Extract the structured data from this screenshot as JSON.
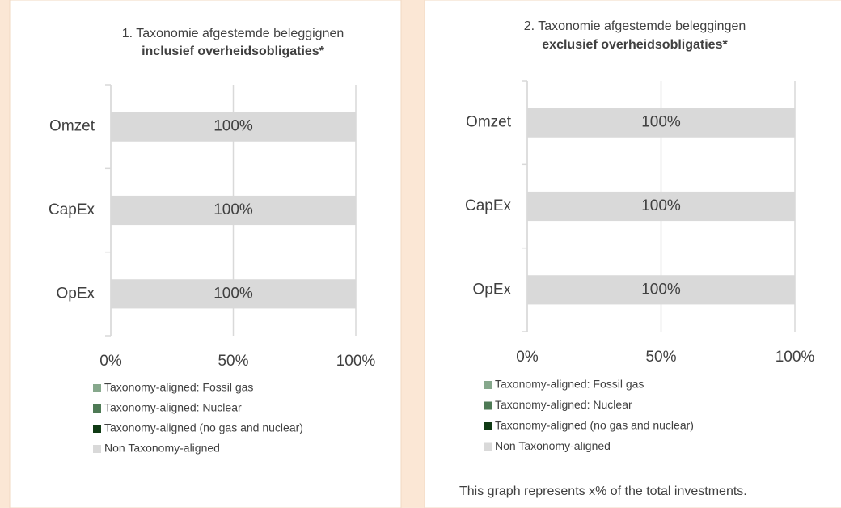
{
  "chart_data": [
    {
      "type": "bar",
      "orientation": "horizontal",
      "stacked": true,
      "title": "1. Taxonomie afgestemde beleggignen",
      "subtitle": "inclusief overheidsobligaties*",
      "categories": [
        "Omzet",
        "CapEx",
        "OpEx"
      ],
      "series": [
        {
          "name": "Taxonomy-aligned: Fossil gas",
          "color": "#86a88c",
          "values": [
            0,
            0,
            0
          ]
        },
        {
          "name": "Taxonomy-aligned: Nuclear",
          "color": "#4e7a55",
          "values": [
            0,
            0,
            0
          ]
        },
        {
          "name": "Taxonomy-aligned (no gas and nuclear)",
          "color": "#0f3a14",
          "values": [
            0,
            0,
            0
          ]
        },
        {
          "name": "Non Taxonomy-aligned",
          "color": "#d9d9d9",
          "values": [
            100,
            100,
            100
          ],
          "value_labels": [
            "100%",
            "100%",
            "100%"
          ]
        }
      ],
      "xlim": [
        0,
        100
      ],
      "xticks": [
        {
          "value": 0,
          "label": "0%"
        },
        {
          "value": 50,
          "label": "50%"
        },
        {
          "value": 100,
          "label": "100%"
        }
      ],
      "grid": true,
      "legend": "bottom"
    },
    {
      "type": "bar",
      "orientation": "horizontal",
      "stacked": true,
      "title": "2. Taxonomie afgestemde beleggingen",
      "subtitle": "exclusief overheidsobligaties*",
      "categories": [
        "Omzet",
        "CapEx",
        "OpEx"
      ],
      "series": [
        {
          "name": "Taxonomy-aligned: Fossil gas",
          "color": "#86a88c",
          "values": [
            0,
            0,
            0
          ]
        },
        {
          "name": "Taxonomy-aligned: Nuclear",
          "color": "#4e7a55",
          "values": [
            0,
            0,
            0
          ]
        },
        {
          "name": "Taxonomy-aligned (no gas and nuclear)",
          "color": "#0f3a14",
          "values": [
            0,
            0,
            0
          ]
        },
        {
          "name": "Non Taxonomy-aligned",
          "color": "#d9d9d9",
          "values": [
            100,
            100,
            100
          ],
          "value_labels": [
            "100%",
            "100%",
            "100%"
          ]
        }
      ],
      "xlim": [
        0,
        100
      ],
      "xticks": [
        {
          "value": 0,
          "label": "0%"
        },
        {
          "value": 50,
          "label": "50%"
        },
        {
          "value": 100,
          "label": "100%"
        }
      ],
      "grid": true,
      "legend": "bottom",
      "note": "This graph represents x% of the total investments."
    }
  ]
}
